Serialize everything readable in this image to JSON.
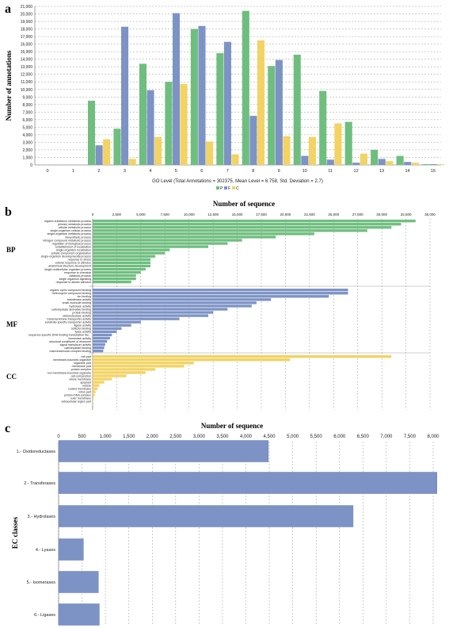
{
  "colors": {
    "P": "#6fbe7f",
    "F": "#7d93c5",
    "C": "#f2d363",
    "text": "#222222"
  },
  "chart_data": [
    {
      "id": "a",
      "panel_label": "a",
      "type": "bar",
      "ylabel": "Number of annotations",
      "xlabel": "GO Level  (Total Annotations = 302375, Mean Level = 6.758, Std. Deviation = 2.7)",
      "legend": {
        "placement": "bottom-center",
        "entries": [
          "P",
          "F",
          "C"
        ]
      },
      "x_ticks": [
        "0",
        "1",
        "2",
        "3",
        "4",
        "5",
        "6",
        "7",
        "8",
        "9",
        "10",
        "11",
        "12",
        "13",
        "14",
        "15"
      ],
      "y_ticks": [
        "0",
        "1,000",
        "2,000",
        "3,000",
        "4,000",
        "5,000",
        "6,000",
        "7,000",
        "8,000",
        "9,000",
        "10,000",
        "11,000",
        "12,000",
        "13,000",
        "14,000",
        "15,000",
        "16,000",
        "17,000",
        "18,000",
        "19,000",
        "20,000",
        "21,000"
      ],
      "ylim": [
        0,
        21000
      ],
      "grid": true,
      "series": [
        {
          "name": "P",
          "values": [
            0,
            0,
            8500,
            4800,
            13400,
            11000,
            18000,
            14800,
            20400,
            13100,
            14600,
            9800,
            5700,
            2000,
            1200,
            100
          ]
        },
        {
          "name": "F",
          "values": [
            0,
            0,
            2600,
            18300,
            9900,
            20100,
            18400,
            16300,
            6500,
            13900,
            1200,
            700,
            300,
            800,
            400,
            100
          ]
        },
        {
          "name": "C",
          "values": [
            0,
            0,
            3400,
            800,
            3700,
            10700,
            3100,
            1400,
            16500,
            3800,
            3700,
            5500,
            1500,
            500,
            300,
            100
          ]
        }
      ]
    },
    {
      "id": "b",
      "panel_label": "b",
      "type": "bar",
      "orientation": "horizontal",
      "xlabel": "Number of sequence",
      "x_ticks": [
        "0",
        "2,500",
        "5,000",
        "7,500",
        "10,000",
        "12,500",
        "15,000",
        "17,500",
        "20,000",
        "22,500",
        "25,000",
        "27,500",
        "30,000",
        "32,500",
        "35,000"
      ],
      "xlim": [
        0,
        35000
      ],
      "grid": true,
      "groups": [
        {
          "name": "BP",
          "color": "P",
          "categories": [
            "organic substance metabolic process",
            "primary metabolic process",
            "cellular metabolic process",
            "single-organism cellular process",
            "single-organism metabolic process",
            "biosynthetic process",
            "nitrogen compound metabolic process",
            "regulation of biological process",
            "establishment of localization",
            "single-organism localization",
            "cellular component organization",
            "single-organism developmental process",
            "response to stress",
            "cellular response to stimulus",
            "anatomical structure development",
            "single-multicellular organism process",
            "response to chemical",
            "catabolic process",
            "single organism signaling",
            "response to abiotic stimulus"
          ],
          "values": [
            33500,
            32000,
            31000,
            28500,
            23000,
            19000,
            15500,
            14000,
            12000,
            8000,
            7500,
            6500,
            6000,
            6000,
            6000,
            5500,
            5000,
            4500,
            4500,
            4000
          ]
        },
        {
          "name": "MF",
          "color": "F",
          "categories": [
            "organic cyclic compound binding",
            "heterocyclic compound binding",
            "ion binding",
            "transferase activity",
            "small molecule binding",
            "hydrolase activity",
            "carbohydrate derivative binding",
            "protein binding",
            "oxidoreductase activity",
            "transmembrane transporter activity",
            "substrate-specific transporter activity",
            "ligase activity",
            "cofactor binding",
            "lyase activity",
            "sequence-specific DNA binding transcription fac...",
            "isomerase activity",
            "structural constituent of ribosome",
            "signal transducer activity",
            "carbohydrate binding",
            "macromolecular complex binding"
          ],
          "values": [
            26500,
            26500,
            24500,
            18500,
            17000,
            16500,
            14000,
            12500,
            12000,
            9000,
            5000,
            4000,
            3000,
            2500,
            2000,
            1800,
            1500,
            1300,
            1200,
            1100
          ]
        },
        {
          "name": "CC",
          "color": "C",
          "categories": [
            "cell part",
            "membrane-bounded organelle",
            "organelle part",
            "membrane part",
            "protein complex",
            "non-membrane-bounded organelle",
            "cell-cell junction",
            "whole membrane",
            "apoplast",
            "vesicle",
            "coated membrane",
            "virion part",
            "protein-DNA complex",
            "outer membrane",
            "extracellular region part"
          ],
          "values": [
            31000,
            20500,
            10500,
            9500,
            6500,
            5500,
            3500,
            2000,
            1200,
            700,
            500,
            300,
            200,
            100,
            50
          ]
        }
      ]
    },
    {
      "id": "c",
      "panel_label": "c",
      "type": "bar",
      "orientation": "horizontal",
      "xlabel": "Number of sequence",
      "ylabel": "EC classes",
      "x_ticks": [
        "0",
        "500",
        "1,000",
        "1,500",
        "2,000",
        "2,500",
        "3,000",
        "3,500",
        "4,000",
        "4,500",
        "5,000",
        "5,500",
        "6,000",
        "6,500",
        "7,000",
        "7,500",
        "8,000"
      ],
      "xlim": [
        0,
        8000
      ],
      "grid": true,
      "categories": [
        "1.- Oxidoreductases",
        "2.- Transferases",
        "3.- Hydrolases",
        "4.- Lyases",
        "5.- Isomerases",
        "6.- Ligases"
      ],
      "values": [
        4480,
        8080,
        6290,
        530,
        850,
        870
      ]
    }
  ]
}
